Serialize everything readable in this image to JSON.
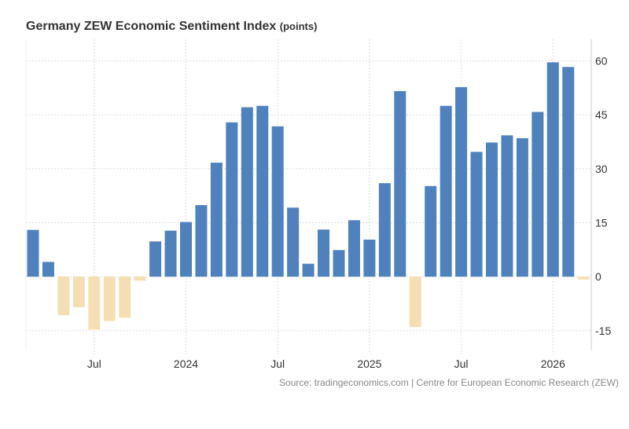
{
  "chart_data": {
    "type": "bar",
    "title": "Germany ZEW Economic Sentiment Index",
    "unit": "(points)",
    "source": "Source: tradingeconomics.com | Centre for European Economic Research (ZEW)",
    "categories": [
      "2023-03",
      "2023-04",
      "2023-05",
      "2023-06",
      "2023-07",
      "2023-08",
      "2023-09",
      "2023-10",
      "2023-11",
      "2023-12",
      "2024-01",
      "2024-02",
      "2024-03",
      "2024-04",
      "2024-05",
      "2024-06",
      "2024-07",
      "2024-08",
      "2024-09",
      "2024-10",
      "2024-11",
      "2024-12",
      "2025-01",
      "2025-02",
      "2025-03",
      "2025-04",
      "2025-05",
      "2025-06",
      "2025-07",
      "2025-08",
      "2025-09",
      "2025-10",
      "2025-11",
      "2025-12",
      "2026-01",
      "2026-02",
      "2026-03"
    ],
    "values": [
      13.0,
      4.1,
      -10.7,
      -8.5,
      -14.7,
      -12.3,
      -11.4,
      -1.1,
      9.8,
      12.8,
      15.2,
      19.9,
      31.7,
      42.9,
      47.1,
      47.5,
      41.8,
      19.2,
      3.6,
      13.1,
      7.4,
      15.7,
      10.3,
      26.0,
      51.6,
      -14.0,
      25.2,
      47.5,
      52.7,
      34.7,
      37.3,
      39.3,
      38.5,
      45.8,
      59.6,
      58.3,
      -0.8
    ],
    "ylim": [
      -20.5,
      66
    ],
    "yticks": [
      "60",
      "45",
      "30",
      "15",
      "0",
      "-15"
    ],
    "ytick_values": [
      60,
      45,
      30,
      15,
      0,
      -15
    ],
    "xticks": [
      {
        "label": "Jul",
        "category": "2023-07"
      },
      {
        "label": "2024",
        "category": "2024-01"
      },
      {
        "label": "Jul",
        "category": "2024-07"
      },
      {
        "label": "2025",
        "category": "2025-01"
      },
      {
        "label": "Jul",
        "category": "2025-07"
      },
      {
        "label": "2026",
        "category": "2026-01"
      }
    ],
    "grid": true,
    "colors": {
      "positive": "#4f81bd",
      "negative": "#f5deb3"
    }
  }
}
